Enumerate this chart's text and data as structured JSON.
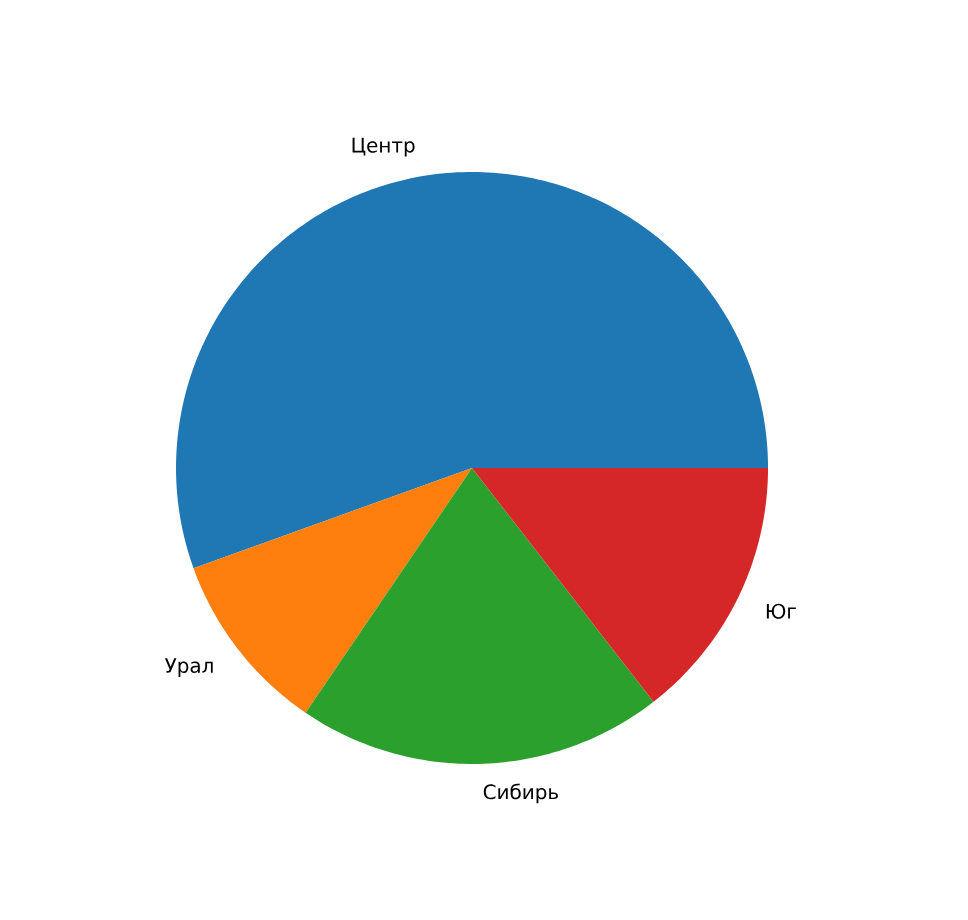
{
  "chart_data": {
    "type": "pie",
    "categories": [
      "Центр",
      "Урал",
      "Сибирь",
      "Юг"
    ],
    "values": [
      55.5,
      10,
      20,
      14.5
    ],
    "colors": [
      "#1f77b4",
      "#ff7f0e",
      "#2ca02c",
      "#d62728"
    ]
  }
}
